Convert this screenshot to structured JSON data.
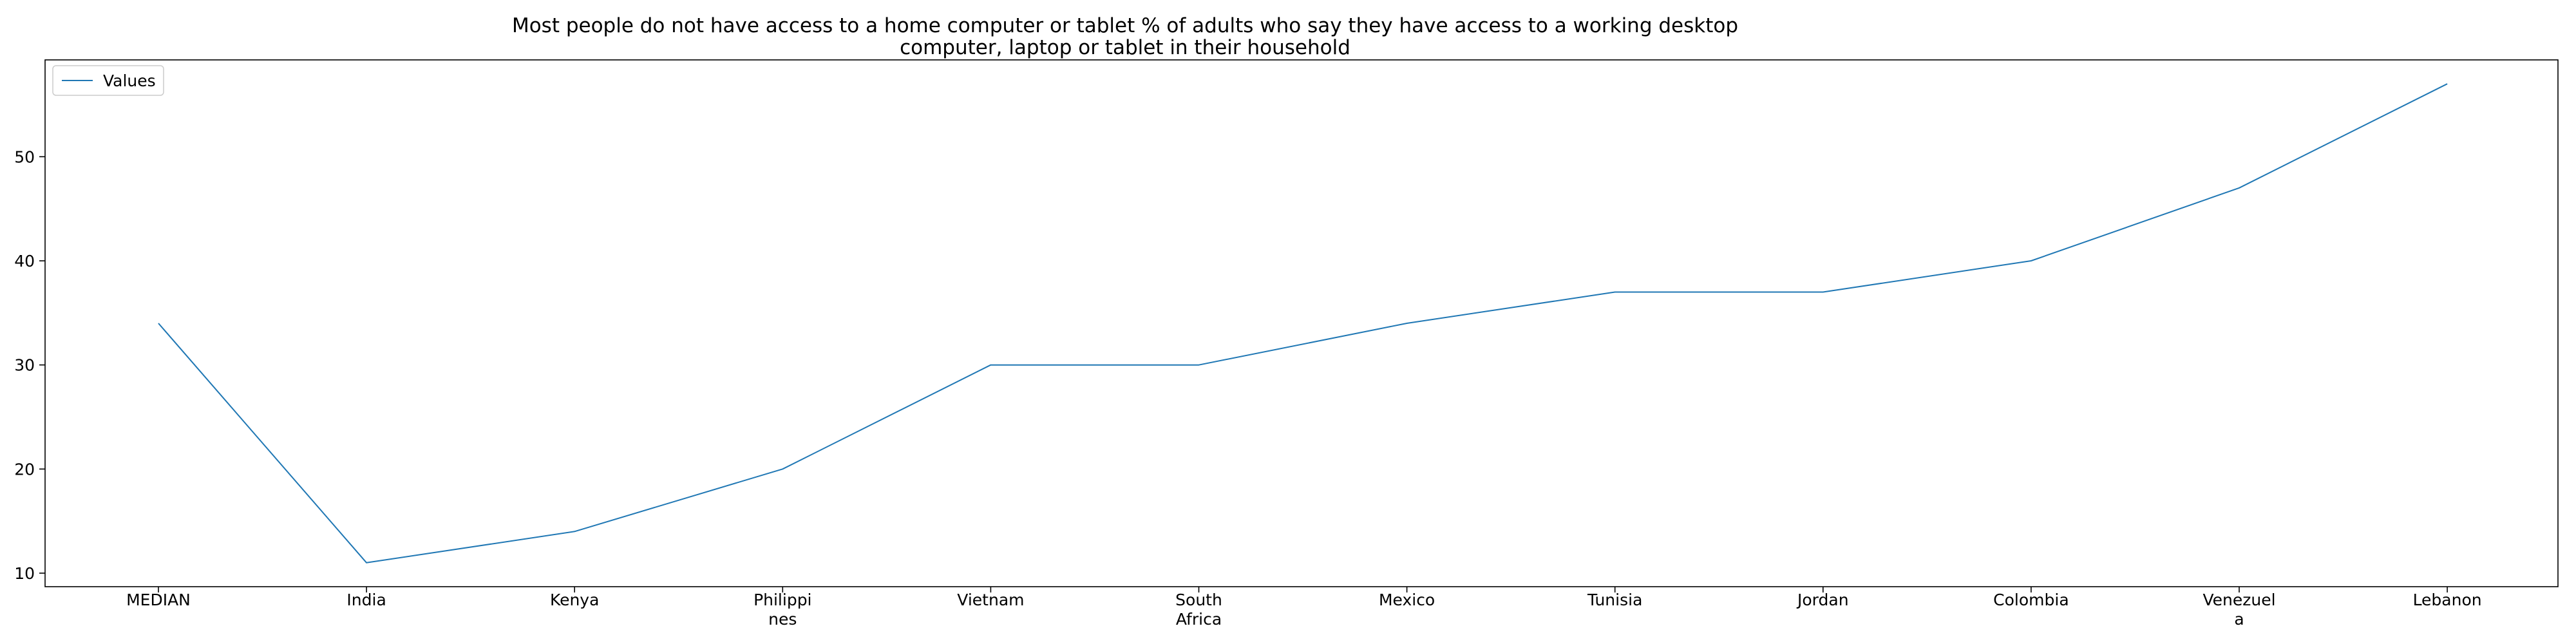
{
  "chart_data": {
    "type": "line",
    "title_lines": [
      "Most people do not have access to a home computer or tablet % of adults who say they have access to a working desktop",
      "computer, laptop or tablet in their household"
    ],
    "categories": [
      "MEDIAN",
      "India",
      "Kenya",
      "Philippines",
      "Vietnam",
      "South Africa",
      "Mexico",
      "Tunisia",
      "Jordan",
      "Colombia",
      "Venezuela",
      "Lebanon"
    ],
    "category_tick_lines": [
      [
        "MEDIAN"
      ],
      [
        "India"
      ],
      [
        "Kenya"
      ],
      [
        "Philippi",
        "nes"
      ],
      [
        "Vietnam"
      ],
      [
        "South",
        "Africa"
      ],
      [
        "Mexico"
      ],
      [
        "Tunisia"
      ],
      [
        "Jordan"
      ],
      [
        "Colombia"
      ],
      [
        "Venezuel",
        "a"
      ],
      [
        "Lebanon"
      ]
    ],
    "series": [
      {
        "name": "Values",
        "color": "#1f77b4",
        "values": [
          34,
          11,
          14,
          20,
          30,
          30,
          34,
          37,
          37,
          40,
          47,
          57
        ]
      }
    ],
    "yticks": [
      10,
      20,
      30,
      40,
      50
    ],
    "ylim": [
      8.7,
      59.3
    ],
    "grid": false,
    "legend_position": "top-left"
  }
}
